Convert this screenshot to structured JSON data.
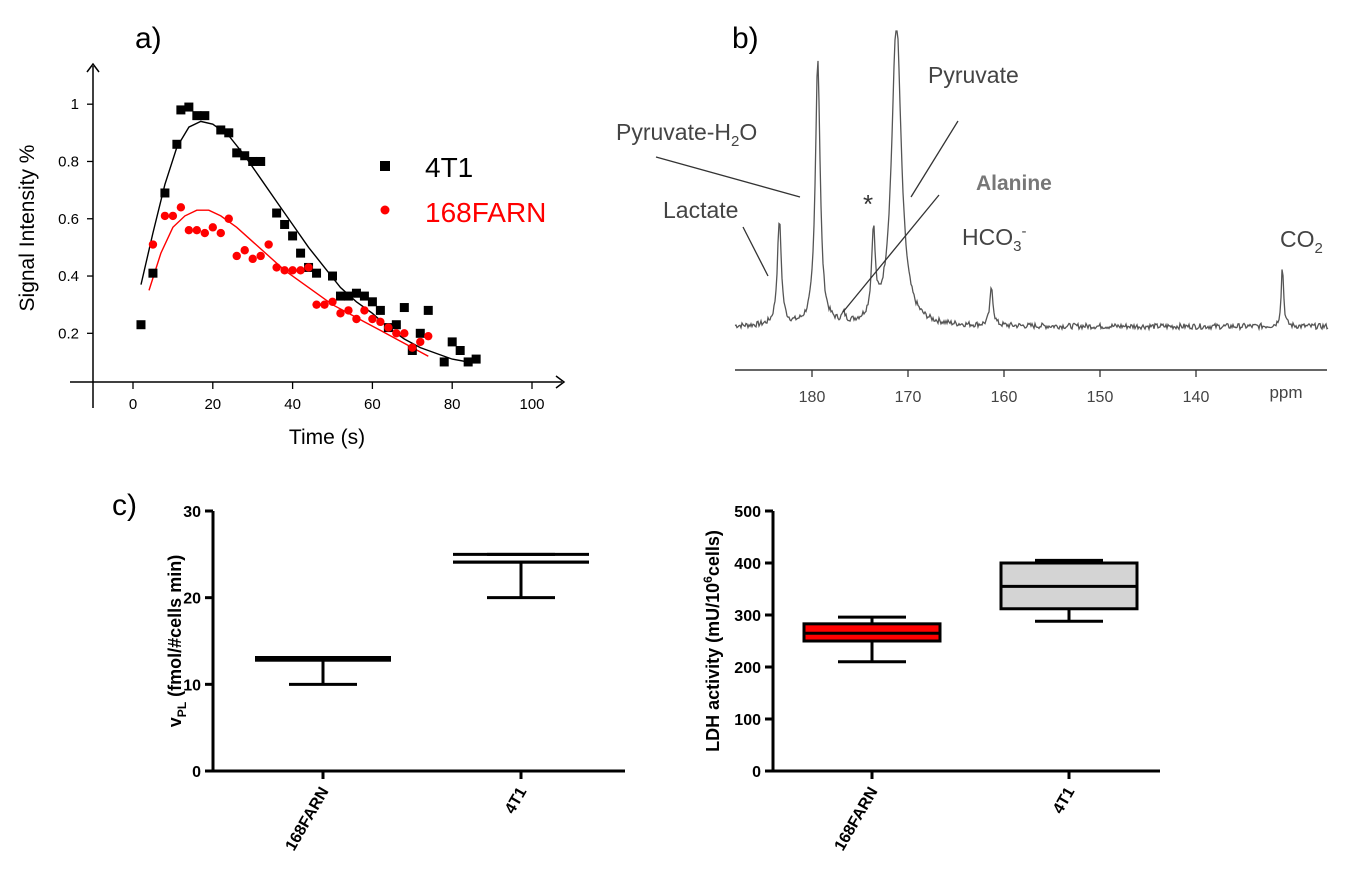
{
  "panels": {
    "a": {
      "label": "a)",
      "chart_data": {
        "type": "scatter",
        "xlabel": "Time (s)",
        "ylabel": "Signal Intensity %",
        "xlim": [
          -10,
          105
        ],
        "ylim": [
          0.03,
          1.13
        ],
        "xticks": [
          0,
          20,
          40,
          60,
          80,
          100
        ],
        "yticks": [
          0.2,
          0.4,
          0.6,
          0.8,
          1
        ],
        "legend": "middle-right",
        "series": [
          {
            "name": "4T1",
            "color": "#000000",
            "marker": "square",
            "points": [
              [
                2,
                0.23
              ],
              [
                5,
                0.41
              ],
              [
                8,
                0.69
              ],
              [
                11,
                0.86
              ],
              [
                12,
                0.98
              ],
              [
                14,
                0.99
              ],
              [
                16,
                0.96
              ],
              [
                18,
                0.96
              ],
              [
                22,
                0.91
              ],
              [
                24,
                0.9
              ],
              [
                26,
                0.83
              ],
              [
                28,
                0.82
              ],
              [
                30,
                0.8
              ],
              [
                32,
                0.8
              ],
              [
                36,
                0.62
              ],
              [
                38,
                0.58
              ],
              [
                40,
                0.54
              ],
              [
                42,
                0.48
              ],
              [
                44,
                0.43
              ],
              [
                46,
                0.41
              ],
              [
                50,
                0.4
              ],
              [
                52,
                0.33
              ],
              [
                54,
                0.33
              ],
              [
                56,
                0.34
              ],
              [
                58,
                0.33
              ],
              [
                60,
                0.31
              ],
              [
                62,
                0.28
              ],
              [
                64,
                0.22
              ],
              [
                66,
                0.23
              ],
              [
                68,
                0.29
              ],
              [
                70,
                0.14
              ],
              [
                72,
                0.2
              ],
              [
                74,
                0.28
              ],
              [
                78,
                0.1
              ],
              [
                80,
                0.17
              ],
              [
                82,
                0.14
              ],
              [
                84,
                0.1
              ],
              [
                86,
                0.11
              ]
            ],
            "fit": [
              [
                2,
                0.37
              ],
              [
                5,
                0.55
              ],
              [
                8,
                0.72
              ],
              [
                11,
                0.85
              ],
              [
                14,
                0.92
              ],
              [
                17,
                0.94
              ],
              [
                20,
                0.93
              ],
              [
                24,
                0.89
              ],
              [
                28,
                0.82
              ],
              [
                32,
                0.74
              ],
              [
                36,
                0.66
              ],
              [
                40,
                0.58
              ],
              [
                44,
                0.5
              ],
              [
                48,
                0.43
              ],
              [
                52,
                0.36
              ],
              [
                56,
                0.31
              ],
              [
                60,
                0.27
              ],
              [
                64,
                0.22
              ],
              [
                68,
                0.18
              ],
              [
                72,
                0.15
              ],
              [
                76,
                0.13
              ],
              [
                80,
                0.11
              ],
              [
                84,
                0.1
              ],
              [
                86,
                0.1
              ]
            ]
          },
          {
            "name": "168FARN",
            "color": "#ff0000",
            "marker": "circle",
            "points": [
              [
                5,
                0.51
              ],
              [
                8,
                0.61
              ],
              [
                10,
                0.61
              ],
              [
                12,
                0.64
              ],
              [
                14,
                0.56
              ],
              [
                16,
                0.56
              ],
              [
                18,
                0.55
              ],
              [
                20,
                0.57
              ],
              [
                22,
                0.55
              ],
              [
                24,
                0.6
              ],
              [
                26,
                0.47
              ],
              [
                28,
                0.49
              ],
              [
                30,
                0.46
              ],
              [
                32,
                0.47
              ],
              [
                34,
                0.51
              ],
              [
                36,
                0.43
              ],
              [
                38,
                0.42
              ],
              [
                40,
                0.42
              ],
              [
                42,
                0.42
              ],
              [
                44,
                0.43
              ],
              [
                46,
                0.3
              ],
              [
                48,
                0.3
              ],
              [
                50,
                0.31
              ],
              [
                52,
                0.27
              ],
              [
                54,
                0.28
              ],
              [
                56,
                0.25
              ],
              [
                58,
                0.28
              ],
              [
                60,
                0.25
              ],
              [
                62,
                0.24
              ],
              [
                64,
                0.22
              ],
              [
                66,
                0.2
              ],
              [
                68,
                0.2
              ],
              [
                70,
                0.15
              ],
              [
                72,
                0.17
              ],
              [
                74,
                0.19
              ]
            ],
            "fit": [
              [
                4,
                0.35
              ],
              [
                7,
                0.48
              ],
              [
                10,
                0.57
              ],
              [
                13,
                0.61
              ],
              [
                16,
                0.63
              ],
              [
                19,
                0.63
              ],
              [
                22,
                0.61
              ],
              [
                26,
                0.57
              ],
              [
                30,
                0.52
              ],
              [
                34,
                0.47
              ],
              [
                38,
                0.42
              ],
              [
                42,
                0.38
              ],
              [
                46,
                0.34
              ],
              [
                50,
                0.3
              ],
              [
                54,
                0.27
              ],
              [
                58,
                0.24
              ],
              [
                62,
                0.21
              ],
              [
                66,
                0.18
              ],
              [
                70,
                0.15
              ],
              [
                74,
                0.12
              ]
            ]
          }
        ]
      }
    },
    "b": {
      "label": "b)",
      "chart_data": {
        "type": "line",
        "xlabel": "ppm",
        "xlim": [
          187,
          128
        ],
        "xticks": [
          180,
          170,
          160,
          150,
          140
        ],
        "baseline": 0.05,
        "peaks": [
          {
            "ppm": 183.4,
            "height": 0.55,
            "width": 0.25
          },
          {
            "ppm": 179.4,
            "height": 1.4,
            "width": 0.3
          },
          {
            "ppm": 176.7,
            "height": 0.04,
            "width": 0.2
          },
          {
            "ppm": 173.6,
            "height": 0.45,
            "width": 0.22
          },
          {
            "ppm": 171.2,
            "height": 1.6,
            "width": 0.6
          },
          {
            "ppm": 161.3,
            "height": 0.2,
            "width": 0.2
          },
          {
            "ppm": 131.0,
            "height": 0.32,
            "width": 0.15
          }
        ],
        "annotations": [
          {
            "text": "Lactate"
          },
          {
            "text": "Pyruvate-H2O"
          },
          {
            "text": "*"
          },
          {
            "text": "Alanine"
          },
          {
            "text": "Pyruvate"
          },
          {
            "text": "HCO3-"
          },
          {
            "text": "CO2"
          }
        ],
        "labels": {
          "lactate": "Lactate",
          "pyruvate_h2o_main": "Pyruvate-H",
          "pyruvate_h2o_sub": "2",
          "pyruvate_h2o_tail": "O",
          "star": "*",
          "alanine": "Alanine",
          "pyruvate": "Pyruvate",
          "hco3_main": "HCO",
          "hco3_sub": "3",
          "hco3_sup": "-",
          "co2_main": "CO",
          "co2_sub": "2"
        }
      }
    },
    "c": {
      "label": "c)",
      "chart_data": [
        {
          "type": "box",
          "ylabel_main": "v",
          "ylabel_sub": "PL",
          "ylabel_rest": " (fmol/#cells min)",
          "ylim": [
            0,
            30
          ],
          "yticks": [
            0,
            10,
            20,
            30
          ],
          "categories": [
            "168FARN",
            "4T1"
          ],
          "boxes": [
            {
              "name": "168FARN",
              "min": 10,
              "q1": 12.8,
              "median": 12.8,
              "q3": 13.1,
              "max": 13.1,
              "fill": "none"
            },
            {
              "name": "4T1",
              "min": 20,
              "q1": 24.1,
              "median": 24.1,
              "q3": 25,
              "max": 25,
              "fill": "none"
            }
          ]
        },
        {
          "type": "box",
          "ylabel_main": "LDH activity (mU/10",
          "ylabel_sup": "6",
          "ylabel_rest": "cells)",
          "ylim": [
            0,
            500
          ],
          "yticks": [
            0,
            100,
            200,
            300,
            400,
            500
          ],
          "categories": [
            "168FARN",
            "4T1"
          ],
          "boxes": [
            {
              "name": "168FARN",
              "min": 210,
              "q1": 250,
              "median": 265,
              "q3": 283,
              "max": 296,
              "fill": "#ff0000"
            },
            {
              "name": "4T1",
              "min": 288,
              "q1": 312,
              "median": 355,
              "q3": 400,
              "max": 405,
              "fill": "#d4d4d4"
            }
          ]
        }
      ]
    }
  }
}
